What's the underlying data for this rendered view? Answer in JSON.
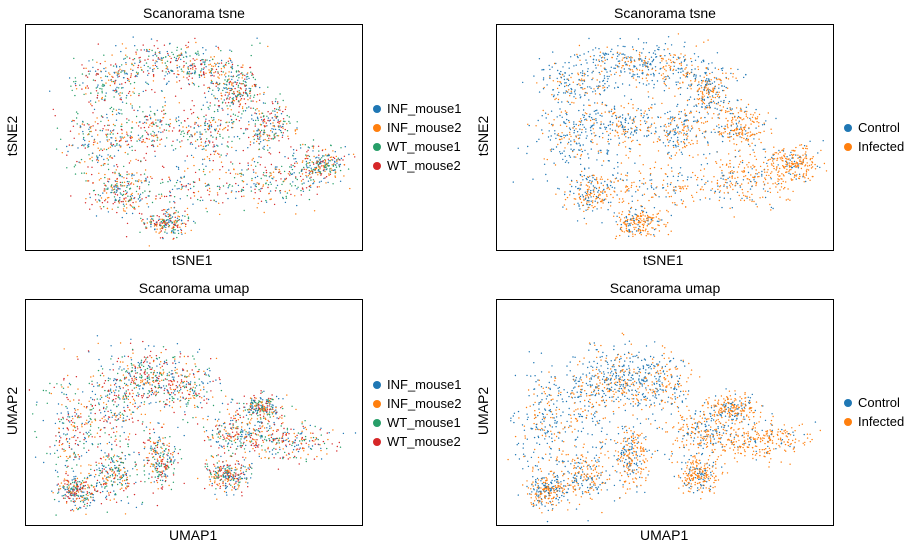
{
  "chart_data": [
    {
      "type": "scatter",
      "title": "Scanorama tsne",
      "xlabel": "tSNE1",
      "ylabel": "tSNE2",
      "embedding": "tsne",
      "color_by": "sample",
      "legend_position": "right",
      "grid": false,
      "series": [
        {
          "name": "INF_mouse1",
          "color": "#1f77b4"
        },
        {
          "name": "INF_mouse2",
          "color": "#ff7f0e"
        },
        {
          "name": "WT_mouse1",
          "color": "#279e68"
        },
        {
          "name": "WT_mouse2",
          "color": "#d62728"
        }
      ]
    },
    {
      "type": "scatter",
      "title": "Scanorama tsne",
      "xlabel": "tSNE1",
      "ylabel": "tSNE2",
      "embedding": "tsne",
      "color_by": "condition",
      "legend_position": "right",
      "grid": false,
      "series": [
        {
          "name": "Control",
          "color": "#1f77b4"
        },
        {
          "name": "Infected",
          "color": "#ff7f0e"
        }
      ]
    },
    {
      "type": "scatter",
      "title": "Scanorama umap",
      "xlabel": "UMAP1",
      "ylabel": "UMAP2",
      "embedding": "umap",
      "color_by": "sample",
      "legend_position": "right",
      "grid": false,
      "series": [
        {
          "name": "INF_mouse1",
          "color": "#1f77b4"
        },
        {
          "name": "INF_mouse2",
          "color": "#ff7f0e"
        },
        {
          "name": "WT_mouse1",
          "color": "#279e68"
        },
        {
          "name": "WT_mouse2",
          "color": "#d62728"
        }
      ]
    },
    {
      "type": "scatter",
      "title": "Scanorama umap",
      "xlabel": "UMAP1",
      "ylabel": "UMAP2",
      "embedding": "umap",
      "color_by": "condition",
      "legend_position": "right",
      "grid": false,
      "series": [
        {
          "name": "Control",
          "color": "#1f77b4"
        },
        {
          "name": "Infected",
          "color": "#ff7f0e"
        }
      ]
    }
  ]
}
